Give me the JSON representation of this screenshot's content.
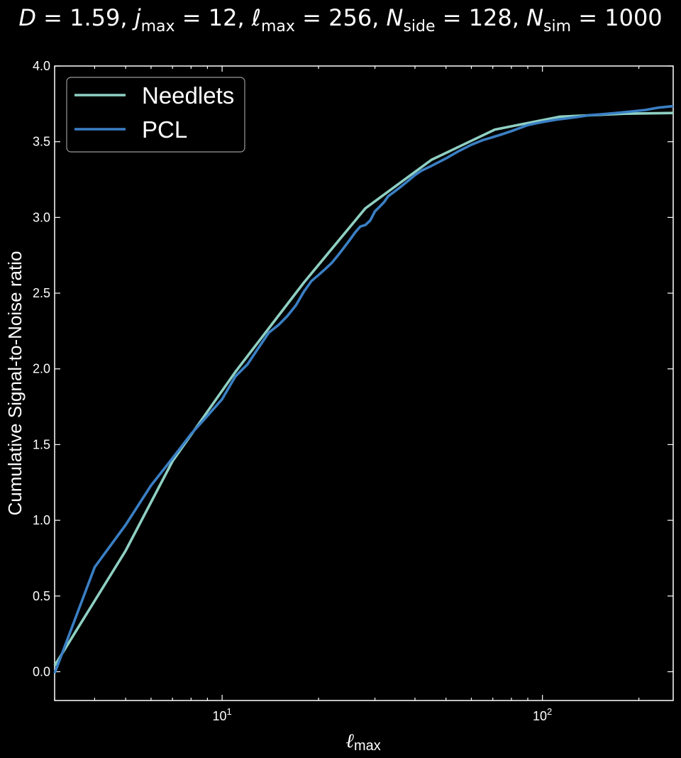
{
  "chart_data": {
    "type": "line",
    "title_parts": {
      "d": "D = 1.59",
      "j": "jmax = 12",
      "l": "ℓmax = 256",
      "n": "Nside = 128",
      "s": "Nsim = 1000"
    },
    "xlabel": "ℓmax",
    "ylabel": "Cumulative Signal-to-Noise ratio",
    "xscale": "log",
    "xlim": [
      3,
      256
    ],
    "ylim": [
      -0.19,
      4.0
    ],
    "yticks": [
      "0.0",
      "0.5",
      "1.0",
      "1.5",
      "2.0",
      "2.5",
      "3.0",
      "3.5",
      "4.0"
    ],
    "xtick_labels": [
      {
        "value": 10,
        "base": "10",
        "exp": "1"
      },
      {
        "value": 100,
        "base": "10",
        "exp": "2"
      }
    ],
    "legend_position": "upper left",
    "grid": false,
    "series": [
      {
        "name": "Needlets",
        "color": "#8fd0c3",
        "x": [
          3,
          5,
          7,
          11,
          18,
          28,
          45,
          71,
          113,
          180,
          256
        ],
        "y": [
          0.04,
          0.8,
          1.39,
          1.98,
          2.57,
          3.06,
          3.38,
          3.58,
          3.665,
          3.685,
          3.69
        ]
      },
      {
        "name": "PCL",
        "color": "#3a7fc4",
        "x": [
          3,
          4,
          5,
          6,
          7,
          8,
          9,
          10,
          11,
          12,
          13,
          14,
          15,
          16,
          17,
          18,
          19,
          20,
          21,
          22,
          23,
          24,
          25,
          26,
          27,
          28,
          29,
          30,
          31,
          32,
          33,
          34,
          35,
          36,
          38,
          40,
          42,
          45,
          50,
          55,
          60,
          65,
          70,
          75,
          80,
          90,
          100,
          110,
          120,
          130,
          140,
          150,
          170,
          190,
          210,
          230,
          256
        ],
        "y": [
          -0.01,
          0.69,
          0.97,
          1.23,
          1.41,
          1.57,
          1.69,
          1.8,
          1.95,
          2.03,
          2.14,
          2.24,
          2.29,
          2.35,
          2.42,
          2.51,
          2.58,
          2.62,
          2.66,
          2.7,
          2.75,
          2.8,
          2.85,
          2.9,
          2.94,
          2.95,
          2.98,
          3.04,
          3.07,
          3.1,
          3.14,
          3.16,
          3.18,
          3.2,
          3.24,
          3.28,
          3.31,
          3.34,
          3.39,
          3.44,
          3.48,
          3.51,
          3.53,
          3.55,
          3.57,
          3.61,
          3.63,
          3.645,
          3.655,
          3.665,
          3.675,
          3.68,
          3.69,
          3.7,
          3.71,
          3.725,
          3.735
        ]
      }
    ]
  }
}
